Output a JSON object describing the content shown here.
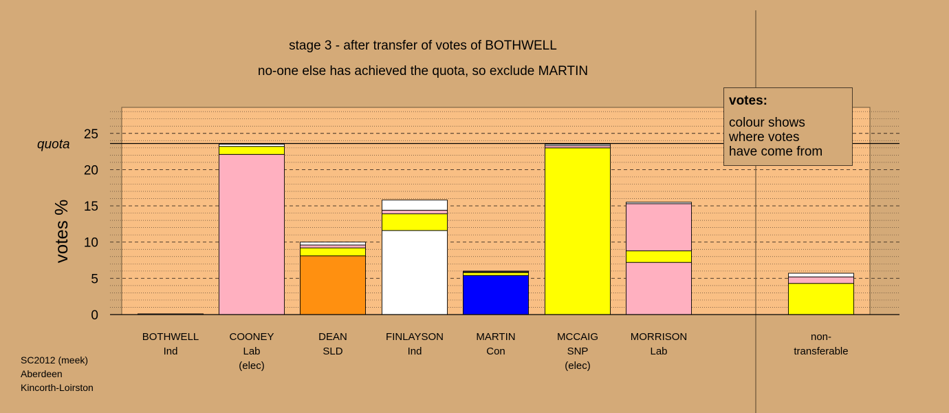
{
  "chart_data": {
    "type": "bar",
    "stacked": true,
    "title": "stage 3 - after transfer of votes of BOTHWELL",
    "subtitle": "no-one else has achieved the quota, so exclude MARTIN",
    "ylabel": "votes %",
    "ylim": [
      0,
      28
    ],
    "yticks": [
      0,
      5,
      10,
      15,
      20,
      25
    ],
    "quota": 23.6,
    "quota_label": "quota",
    "categories": [
      {
        "name": "BOTHWELL",
        "party": "Ind",
        "note": ""
      },
      {
        "name": "COONEY",
        "party": "Lab",
        "note": "(elec)"
      },
      {
        "name": "DEAN",
        "party": "SLD",
        "note": ""
      },
      {
        "name": "FINLAYSON",
        "party": "Ind",
        "note": ""
      },
      {
        "name": "MARTIN",
        "party": "Con",
        "note": ""
      },
      {
        "name": "MCCAIG",
        "party": "SNP",
        "note": "(elec)"
      },
      {
        "name": "MORRISON",
        "party": "Lab",
        "note": ""
      },
      {
        "name": "non-",
        "party": "transferable",
        "note": ""
      }
    ],
    "stacks": [
      [
        {
          "color": "#ffffff",
          "value": 0.1
        }
      ],
      [
        {
          "color": "#ffb0c0",
          "value": 22.1
        },
        {
          "color": "#ffff00",
          "value": 1.1
        },
        {
          "color": "#ffffff",
          "value": 0.3
        }
      ],
      [
        {
          "color": "#ff9010",
          "value": 8.1
        },
        {
          "color": "#ffff00",
          "value": 1.1
        },
        {
          "color": "#ffb0c0",
          "value": 0.4
        },
        {
          "color": "#ffffff",
          "value": 0.4
        }
      ],
      [
        {
          "color": "#ffffff",
          "value": 11.6
        },
        {
          "color": "#ffff00",
          "value": 2.3
        },
        {
          "color": "#ffb0c0",
          "value": 0.5
        },
        {
          "color": "#ffffff",
          "value": 1.4
        }
      ],
      [
        {
          "color": "#0000ff",
          "value": 5.4
        },
        {
          "color": "#ffff00",
          "value": 0.4
        },
        {
          "color": "#ffb0c0",
          "value": 0.1
        },
        {
          "color": "#ffffff",
          "value": 0.1
        }
      ],
      [
        {
          "color": "#ffff00",
          "value": 23.0
        },
        {
          "color": "#ffb0c0",
          "value": 0.3
        },
        {
          "color": "#ffffff",
          "value": 0.2
        }
      ],
      [
        {
          "color": "#ffb0c0",
          "value": 7.2
        },
        {
          "color": "#ffff00",
          "value": 1.6
        },
        {
          "color": "#ffb0c0",
          "value": 6.5
        },
        {
          "color": "#ffffff",
          "value": 0.2
        }
      ],
      [
        {
          "color": "#ffff00",
          "value": 4.3
        },
        {
          "color": "#ffb0c0",
          "value": 0.9
        },
        {
          "color": "#ffffff",
          "value": 0.5
        }
      ]
    ],
    "grid": true,
    "legend": {
      "position": "top-right",
      "title": "votes:",
      "lines": [
        "colour shows",
        "where votes",
        "have come from"
      ]
    }
  },
  "footer": [
    "SC2012 (meek)",
    "Aberdeen",
    "Kincorth-Loirston"
  ]
}
